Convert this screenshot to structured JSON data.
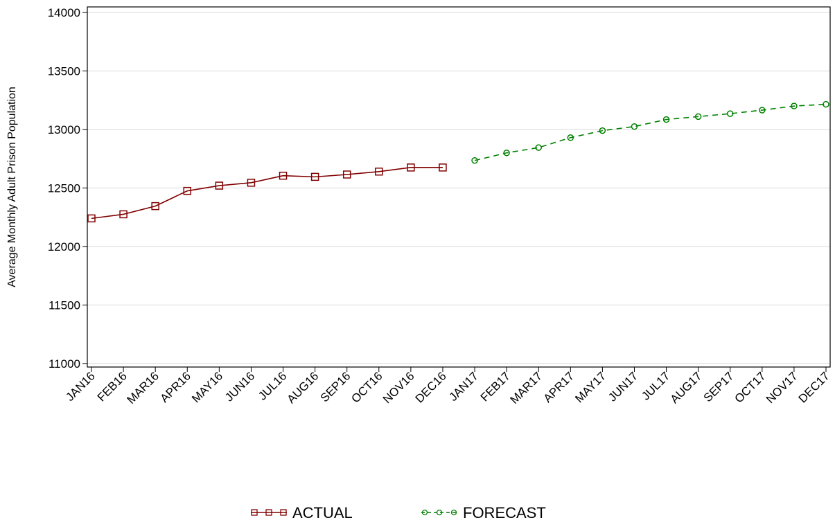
{
  "chart_data": {
    "type": "line",
    "y_label": "Average Monthly Adult Prison Population",
    "categories": [
      "JAN16",
      "FEB16",
      "MAR16",
      "APR16",
      "MAY16",
      "JUN16",
      "JUL16",
      "AUG16",
      "SEP16",
      "OCT16",
      "NOV16",
      "DEC16",
      "JAN17",
      "FEB17",
      "MAR17",
      "APR17",
      "MAY17",
      "JUN17",
      "JUL17",
      "AUG17",
      "SEP17",
      "OCT17",
      "NOV17",
      "DEC17"
    ],
    "series": [
      {
        "name": "ACTUAL",
        "color": "#800000",
        "marker": "square",
        "dashed": false,
        "values": [
          12240,
          12275,
          12345,
          12475,
          12520,
          12545,
          12605,
          12595,
          12615,
          12640,
          12675,
          12675,
          null,
          null,
          null,
          null,
          null,
          null,
          null,
          null,
          null,
          null,
          null,
          null
        ]
      },
      {
        "name": "FORECAST",
        "color": "#008000",
        "marker": "circle",
        "dashed": true,
        "values": [
          null,
          null,
          null,
          null,
          null,
          null,
          null,
          null,
          null,
          null,
          null,
          null,
          12735,
          12800,
          12845,
          12930,
          12990,
          13025,
          13085,
          13110,
          13135,
          13165,
          13200,
          13215
        ]
      }
    ],
    "ylim": [
      10970,
      14047
    ],
    "yticks": [
      11000,
      11500,
      12000,
      12500,
      13000,
      13500,
      14000
    ],
    "grid": true,
    "legend": "bottom"
  }
}
